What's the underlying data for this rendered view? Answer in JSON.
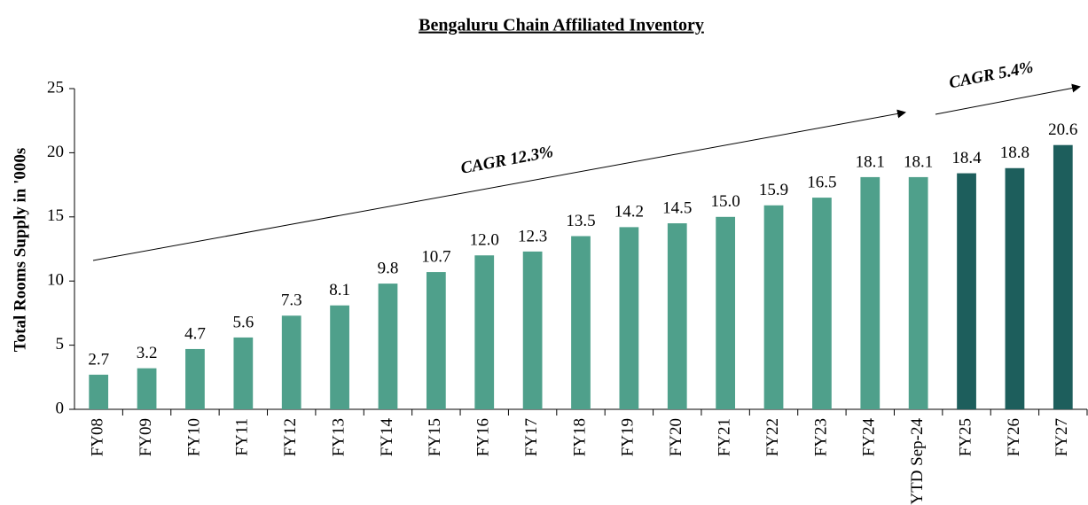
{
  "chart_data": {
    "type": "bar",
    "title": "Bengaluru Chain Affiliated Inventory",
    "y_axis_label": "Total Rooms Supply in '000s",
    "categories": [
      "FY08",
      "FY09",
      "FY10",
      "FY11",
      "FY12",
      "FY13",
      "FY14",
      "FY15",
      "FY16",
      "FY17",
      "FY18",
      "FY19",
      "FY20",
      "FY21",
      "FY22",
      "FY23",
      "FY24",
      "YTD Sep-24",
      "FY25",
      "FY26",
      "FY27"
    ],
    "values": [
      2.7,
      3.2,
      4.7,
      5.6,
      7.3,
      8.1,
      9.8,
      10.7,
      12.0,
      12.3,
      13.5,
      14.2,
      14.5,
      15.0,
      15.9,
      16.5,
      18.1,
      18.1,
      18.4,
      18.8,
      20.6
    ],
    "value_labels": [
      "2.7",
      "3.2",
      "4.7",
      "5.6",
      "7.3",
      "8.1",
      "9.8",
      "10.7",
      "12.0",
      "12.3",
      "13.5",
      "14.2",
      "14.5",
      "15.0",
      "15.9",
      "16.5",
      "18.1",
      "18.1",
      "18.4",
      "18.8",
      "20.6"
    ],
    "colors": [
      "#4fa08b",
      "#4fa08b",
      "#4fa08b",
      "#4fa08b",
      "#4fa08b",
      "#4fa08b",
      "#4fa08b",
      "#4fa08b",
      "#4fa08b",
      "#4fa08b",
      "#4fa08b",
      "#4fa08b",
      "#4fa08b",
      "#4fa08b",
      "#4fa08b",
      "#4fa08b",
      "#4fa08b",
      "#4fa08b",
      "#1d5e5c",
      "#1d5e5c",
      "#1d5e5c"
    ],
    "ylim": [
      0,
      25
    ],
    "yticks": [
      0,
      5,
      10,
      15,
      20,
      25
    ],
    "grid": false,
    "annotations": [
      "CAGR 12.3%",
      "CAGR 5.4%"
    ]
  }
}
